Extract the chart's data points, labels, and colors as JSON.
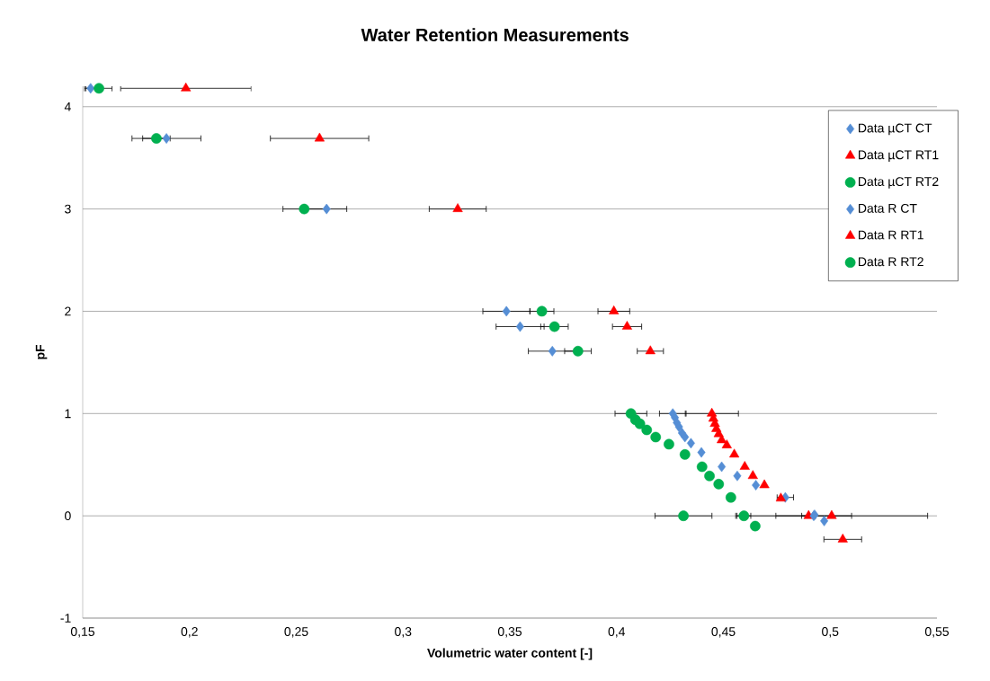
{
  "chart_data": {
    "type": "scatter",
    "title": "Water Retention Measurements",
    "xlabel": "Volumetric water content [-]",
    "ylabel": "pF",
    "xlim": [
      0.15,
      0.55
    ],
    "xticks": [
      {
        "value": 0.15,
        "label": "0,15"
      },
      {
        "value": 0.2,
        "label": "0,2"
      },
      {
        "value": 0.25,
        "label": "0,25"
      },
      {
        "value": 0.3,
        "label": "0,3"
      },
      {
        "value": 0.35,
        "label": "0,35"
      },
      {
        "value": 0.4,
        "label": "0,4"
      },
      {
        "value": 0.45,
        "label": "0,45"
      },
      {
        "value": 0.5,
        "label": "0,5"
      },
      {
        "value": 0.55,
        "label": "0,55"
      }
    ],
    "ylim": [
      -1,
      4.2
    ],
    "yticks": [
      -1,
      0,
      1,
      2,
      3,
      4
    ],
    "grid": "y",
    "legend": "top right",
    "series": [
      {
        "name": "Data µCT CT",
        "color": "#558ed5",
        "marker": "diamond",
        "x": [
          0.4263,
          0.4273,
          0.4282,
          0.4292,
          0.4306,
          0.432,
          0.4348,
          0.4397,
          0.4492,
          0.4565,
          0.4652,
          0.479,
          0.4927,
          0.4972
        ],
        "values": [
          1.0,
          0.96,
          0.91,
          0.87,
          0.81,
          0.77,
          0.71,
          0.62,
          0.48,
          0.39,
          0.3,
          0.18,
          0.01,
          -0.05
        ],
        "xerrors": [
          0.0064,
          null,
          null,
          null,
          null,
          null,
          null,
          null,
          null,
          null,
          null,
          0.004,
          null,
          null
        ]
      },
      {
        "name": "Data µCT RT1",
        "color": "#ff0000",
        "marker": "triangle",
        "x": [
          0.4446,
          0.4453,
          0.446,
          0.4467,
          0.4478,
          0.4492,
          0.4516,
          0.4551,
          0.46,
          0.4638,
          0.4692,
          0.4769,
          0.4899,
          0.5059
        ],
        "values": [
          1.0,
          0.95,
          0.9,
          0.85,
          0.8,
          0.74,
          0.69,
          0.6,
          0.48,
          0.39,
          0.3,
          0.17,
          0.0,
          -0.23
        ],
        "xerrors": [
          0.0126,
          null,
          null,
          null,
          null,
          null,
          null,
          null,
          null,
          null,
          null,
          null,
          0.0034,
          0.009
        ]
      },
      {
        "name": "Data µCT RT2",
        "color": "#00b050",
        "marker": "circle",
        "x": [
          0.4067,
          0.4088,
          0.4109,
          0.4141,
          0.4183,
          0.4245,
          0.432,
          0.44,
          0.4435,
          0.4478,
          0.4535,
          0.4596,
          0.4649
        ],
        "values": [
          1.0,
          0.94,
          0.9,
          0.84,
          0.77,
          0.7,
          0.6,
          0.48,
          0.39,
          0.31,
          0.18,
          0.0,
          -0.1
        ],
        "xerrors": [
          0.0076,
          null,
          null,
          null,
          null,
          null,
          null,
          null,
          null,
          null,
          null,
          0.0034,
          null
        ]
      },
      {
        "name": "Data R CT",
        "color": "#558ed5",
        "marker": "diamond",
        "x": [
          0.1537,
          0.1892,
          0.2642,
          0.3484,
          0.3548,
          0.3699,
          0.4923
        ],
        "values": [
          4.18,
          3.69,
          3.0,
          2.0,
          1.85,
          1.61,
          0.0
        ],
        "xerrors": [
          0.003,
          0.0163,
          0.0096,
          0.0112,
          0.0114,
          0.0114,
          0.0179
        ]
      },
      {
        "name": "Data R RT1",
        "color": "#ff0000",
        "marker": "triangle",
        "x": [
          0.1983,
          0.2609,
          0.3256,
          0.3987,
          0.4049,
          0.4158,
          0.5007
        ],
        "values": [
          4.18,
          3.69,
          3.0,
          2.0,
          1.85,
          1.61,
          0.0
        ],
        "xerrors": [
          0.0307,
          0.0232,
          0.0135,
          0.0076,
          0.007,
          0.0063,
          0.0451
        ]
      },
      {
        "name": "Data R RT2",
        "color": "#00b050",
        "marker": "circle",
        "x": [
          0.1576,
          0.1845,
          0.2537,
          0.365,
          0.3709,
          0.3819,
          0.4313
        ],
        "values": [
          4.18,
          3.69,
          3.0,
          2.0,
          1.85,
          1.61,
          0.0
        ],
        "xerrors": [
          0.0063,
          0.0066,
          0.0101,
          0.0058,
          0.0066,
          0.0064,
          0.0135
        ]
      }
    ]
  }
}
